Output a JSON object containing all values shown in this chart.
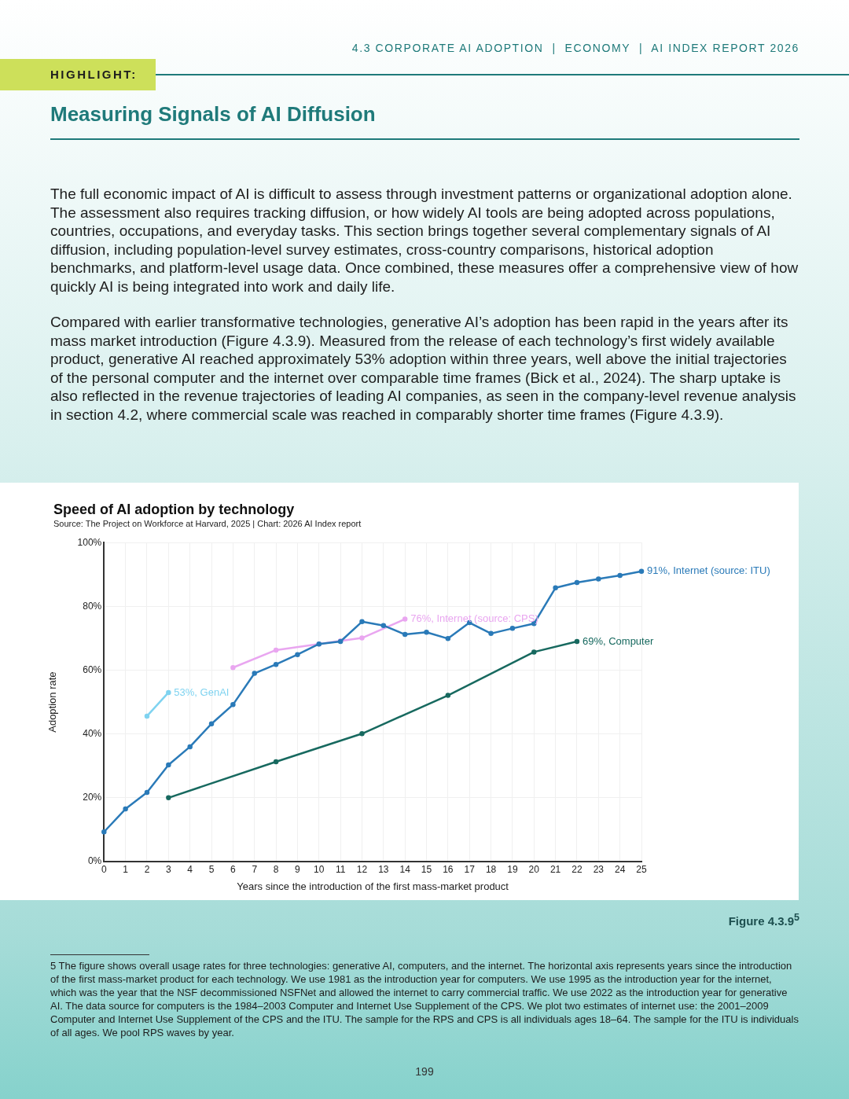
{
  "chart_data": {
    "type": "line",
    "title": "Speed of AI adoption by technology",
    "subtitle": "Source: The Project on Workforce at Harvard, 2025 | Chart: 2026 AI Index report",
    "xlabel": "Years since the introduction of the first mass-market product",
    "ylabel": "Adoption rate",
    "xlim": [
      0,
      25
    ],
    "xticks": [
      0,
      1,
      2,
      3,
      4,
      5,
      6,
      7,
      8,
      9,
      10,
      11,
      12,
      13,
      14,
      15,
      16,
      17,
      18,
      19,
      20,
      21,
      22,
      23,
      24,
      25
    ],
    "ylim": [
      0,
      100
    ],
    "yticks": [
      {
        "value": 0,
        "label": "0%"
      },
      {
        "value": 20,
        "label": "20%"
      },
      {
        "value": 40,
        "label": "40%"
      },
      {
        "value": 60,
        "label": "60%"
      },
      {
        "value": 80,
        "label": "80%"
      },
      {
        "value": 100,
        "label": "100%"
      }
    ],
    "grid": true,
    "legend": false,
    "marker": "circle",
    "line_style": "solid",
    "series": [
      {
        "color": "#2a7ab8",
        "x": [
          0,
          1,
          2,
          3,
          4,
          5,
          6,
          7,
          8,
          9,
          10,
          11,
          12,
          13,
          14,
          15,
          16,
          17,
          18,
          19,
          20,
          21,
          22,
          23,
          24,
          25
        ],
        "values": [
          9.3,
          16.5,
          21.7,
          30.3,
          36,
          43.2,
          49.2,
          59,
          61.8,
          64.9,
          68.2,
          69,
          75.2,
          74,
          71.2,
          71.9,
          69.9,
          74.9,
          71.5,
          73.1,
          74.6,
          85.8,
          87.5,
          88.6,
          89.7,
          91
        ]
      },
      {
        "color": "#e9a6f0",
        "x": [
          6,
          8,
          10,
          11,
          12,
          14
        ],
        "values": [
          60.8,
          66.3,
          68.2,
          69.2,
          70.1,
          76
        ]
      },
      {
        "color": "#17695f",
        "x": [
          3,
          8,
          12,
          16,
          20,
          22
        ],
        "values": [
          20,
          31.3,
          40.1,
          52.1,
          65.7,
          69
        ]
      },
      {
        "color": "#7fd3f0",
        "x": [
          2,
          3
        ],
        "values": [
          45.6,
          53
        ]
      }
    ],
    "annotations": [
      "4.3 CORPORATE AI ADOPTION  |  ECONOMY  |  AI INDEX REPORT 2026",
      "HIGHLIGHT:",
      "Measuring Signals of AI Diffusion",
      "The full economic impact of AI is difficult to assess through investment patterns or organizational adoption alone. The assessment also requires tracking diffusion, or how widely AI tools are being adopted across populations, countries, occupations, and everyday tasks. This section brings together several complementary signals of AI diffusion, including population-level survey estimates, cross-country comparisons, historical adoption benchmarks, and platform-level usage data. Once combined, these measures offer a comprehensive view of how quickly AI is being integrated into work and daily life.",
      "Compared with earlier transformative technologies, generative AI’s adoption has been rapid in the years after its mass market introduction (Figure 4.3.9). Measured from the release of each technology’s first widely available product, generative AI reached approximately 53% adoption within three years, well above the initial trajectories of the personal computer and the internet over comparable time frames (Bick et al., 2024). The sharp uptake is also reflected in the revenue trajectories of leading AI companies, as seen in the company-level revenue analysis in section 4.2, where commercial scale was reached in comparably shorter time frames (Figure 4.3.9).",
      "Figure 4.3.9$^{5}$",
      "5   The figure shows overall usage rates for three technologies: generative AI, computers, and the internet. The horizontal axis represents years since the introduction of the first mass-market product for each technology. We use 1981 as the introduction year for computers. We use 1995 as the introduction year for the internet, which was the year that the NSF decommissioned NSFNet and allowed the internet to carry commercial traffic. We use 2022 as the introduction year for generative AI. The data source for computers is the 1984–2003 Computer and Internet Use Supplement of the CPS. We plot two estimates of internet use: the 2001–2009 Computer and Internet Use Supplement of the CPS and the ITU. The sample for the RPS and CPS is all individuals ages 18–64. The sample for the ITU is individuals of all ages. We pool RPS waves by year.",
      "199",
      {
        "text": "91%, Internet (source: ITU)",
        "x": 25,
        "y": 91
      },
      {
        "text": "76%, Internet (source: CPS)",
        "x": 14,
        "y": 76
      },
      {
        "text": "69%, Computer",
        "x": 22,
        "y": 69
      },
      {
        "text": "53%, GenAI",
        "x": 3,
        "y": 53
      }
    ]
  }
}
